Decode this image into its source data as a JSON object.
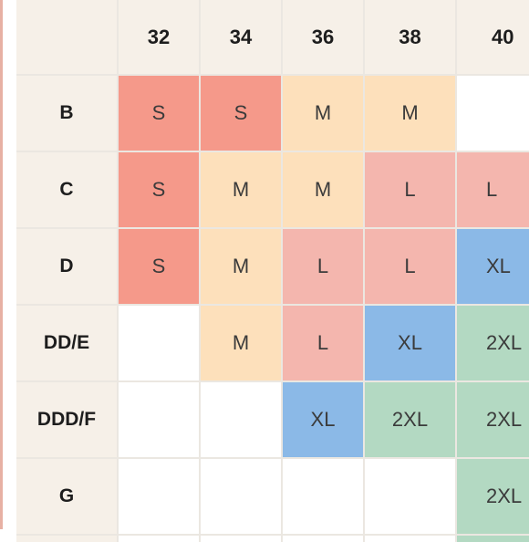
{
  "columns": [
    "32",
    "34",
    "36",
    "38",
    "40"
  ],
  "rows": [
    {
      "band": "B",
      "cells": [
        "S",
        "S",
        "M",
        "M",
        ""
      ]
    },
    {
      "band": "C",
      "cells": [
        "S",
        "M",
        "M",
        "L",
        "L"
      ]
    },
    {
      "band": "D",
      "cells": [
        "S",
        "M",
        "L",
        "L",
        "XL"
      ]
    },
    {
      "band": "DD/E",
      "cells": [
        "",
        "M",
        "L",
        "XL",
        "2XL"
      ]
    },
    {
      "band": "DDD/F",
      "cells": [
        "",
        "",
        "XL",
        "2XL",
        "2XL"
      ]
    },
    {
      "band": "G",
      "cells": [
        "",
        "",
        "",
        "",
        "2XL"
      ]
    }
  ],
  "colors": {
    "S": "#f5998a",
    "M": "#fde0bb",
    "L": "#f4b6ae",
    "XL": "#8bb9e7",
    "2XL": "#b3d9c2",
    "header_bg": "#f6f0e8",
    "grid_line": "#ebe7e1"
  }
}
